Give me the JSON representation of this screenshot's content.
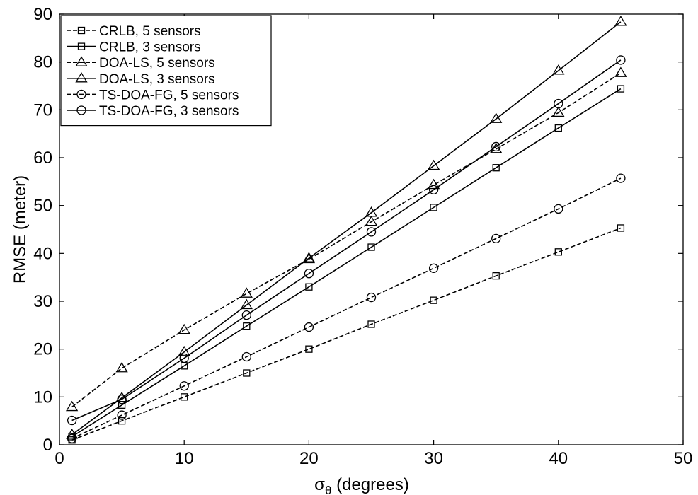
{
  "chart_data": {
    "type": "line",
    "title": "",
    "xlabel": {
      "symbol": "σ",
      "subscript": "θ",
      "text": " (degrees)"
    },
    "ylabel": "RMSE (meter)",
    "xlim": [
      0,
      50
    ],
    "ylim": [
      0,
      90
    ],
    "xticks": [
      0,
      10,
      20,
      30,
      40,
      50
    ],
    "yticks": [
      0,
      10,
      20,
      30,
      40,
      50,
      60,
      70,
      80,
      90
    ],
    "grid": false,
    "legend": "top-left",
    "x": [
      1,
      5,
      10,
      15,
      20,
      25,
      30,
      35,
      40,
      45
    ],
    "series": [
      {
        "name": "CRLB, 5 sensors",
        "marker": "square",
        "dash": "dashed",
        "values": [
          1.0,
          5.0,
          10.0,
          15.0,
          20.0,
          25.2,
          30.2,
          35.3,
          40.3,
          45.3
        ]
      },
      {
        "name": "CRLB, 3 sensors",
        "marker": "square",
        "dash": "solid",
        "values": [
          1.7,
          8.3,
          16.5,
          24.8,
          33.0,
          41.3,
          49.6,
          57.9,
          66.2,
          74.4
        ]
      },
      {
        "name": "DOA-LS, 5 sensors",
        "marker": "triangle",
        "dash": "dashed",
        "values": [
          7.9,
          16.0,
          24.0,
          31.6,
          38.8,
          46.6,
          54.3,
          61.8,
          69.4,
          77.7
        ]
      },
      {
        "name": "DOA-LS, 3 sensors",
        "marker": "triangle",
        "dash": "solid",
        "values": [
          2.1,
          9.8,
          19.4,
          29.2,
          39.0,
          48.5,
          58.3,
          68.1,
          78.2,
          88.4
        ]
      },
      {
        "name": "TS-DOA-FG, 5 sensors",
        "marker": "circle",
        "dash": "dashed",
        "values": [
          1.3,
          6.2,
          12.3,
          18.4,
          24.6,
          30.8,
          36.9,
          43.1,
          49.3,
          55.7
        ]
      },
      {
        "name": "TS-DOA-FG, 3 sensors",
        "marker": "circle",
        "dash": "solid",
        "values": [
          5.1,
          9.5,
          18.1,
          27.1,
          35.8,
          44.5,
          53.3,
          62.3,
          71.3,
          80.4
        ]
      }
    ]
  }
}
